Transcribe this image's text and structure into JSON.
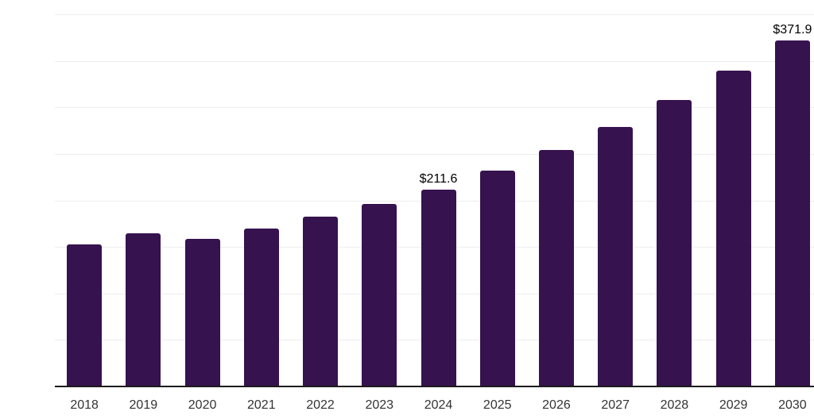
{
  "chart": {
    "background_color": "#ffffff",
    "bar_color": "#36124e",
    "axis_color": "#1c1c1c",
    "gridline_color": "#ededed",
    "tick_label_color": "#333333",
    "data_label_color": "#000000"
  },
  "chart_data": {
    "type": "bar",
    "categories": [
      "2018",
      "2019",
      "2020",
      "2021",
      "2022",
      "2023",
      "2024",
      "2025",
      "2026",
      "2027",
      "2028",
      "2029",
      "2030"
    ],
    "values": [
      153.0,
      164.5,
      158.6,
      169.8,
      182.1,
      196.0,
      211.6,
      232.3,
      254.2,
      279.1,
      308.1,
      339.8,
      371.9
    ],
    "data_labels": {
      "2024": "$211.6",
      "2030": "$371.9"
    },
    "ylim": [
      0,
      400
    ],
    "gridline_step": 50,
    "grid": true,
    "legend": false,
    "xlabel": "",
    "ylabel": ""
  }
}
